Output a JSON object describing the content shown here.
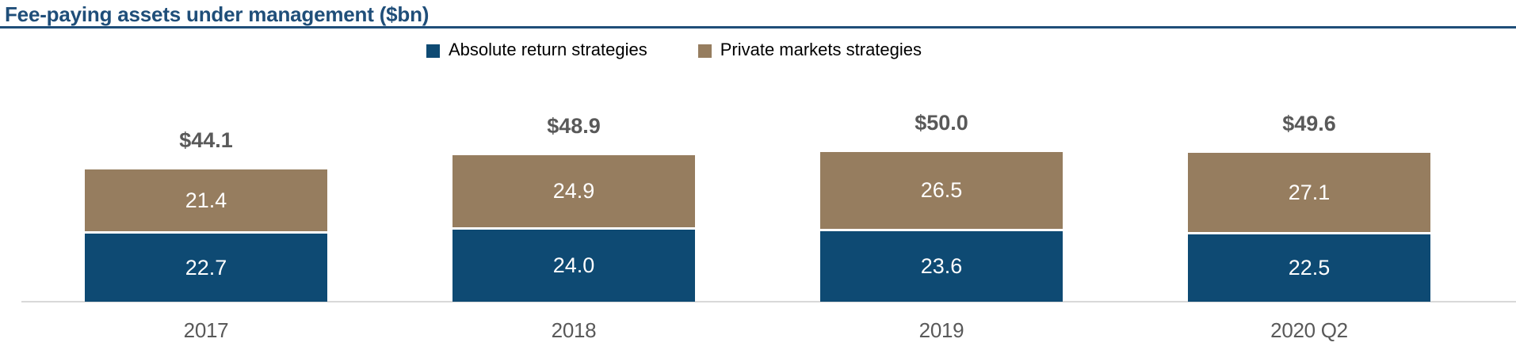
{
  "title": "Fee-paying assets under management ($bn)",
  "legend": {
    "items": [
      {
        "label": "Absolute return strategies",
        "color": "#0E4A73"
      },
      {
        "label": "Private markets strategies",
        "color": "#967D5F"
      }
    ]
  },
  "chart_data": {
    "type": "bar",
    "stacked": true,
    "title": "Fee-paying assets under management ($bn)",
    "categories": [
      "2017",
      "2018",
      "2019",
      "2020 Q2"
    ],
    "series": [
      {
        "name": "Absolute return strategies",
        "color": "#0E4A73",
        "values": [
          22.7,
          24.0,
          23.6,
          22.5
        ]
      },
      {
        "name": "Private markets strategies",
        "color": "#967D5F",
        "values": [
          21.4,
          24.9,
          26.5,
          27.1
        ]
      }
    ],
    "totals": [
      44.1,
      48.9,
      50.0,
      49.6
    ],
    "total_labels": [
      "$44.1",
      "$48.9",
      "$50.0",
      "$49.6"
    ],
    "segment_labels": {
      "absolute_return": [
        "22.7",
        "24.0",
        "23.6",
        "22.5"
      ],
      "private_markets": [
        "21.4",
        "24.9",
        "26.5",
        "27.1"
      ]
    },
    "ylim": [
      0,
      50
    ],
    "xlabel": "",
    "ylabel": "",
    "grid": false,
    "legend_position": "top",
    "accent_colors": {
      "title_blue": "#1F4E79",
      "bar_blue": "#0E4A73",
      "bar_brown": "#967D5F",
      "label_gray": "#595959",
      "axis_gray": "#D9D9D9",
      "segment_text": "#ffffff"
    }
  }
}
